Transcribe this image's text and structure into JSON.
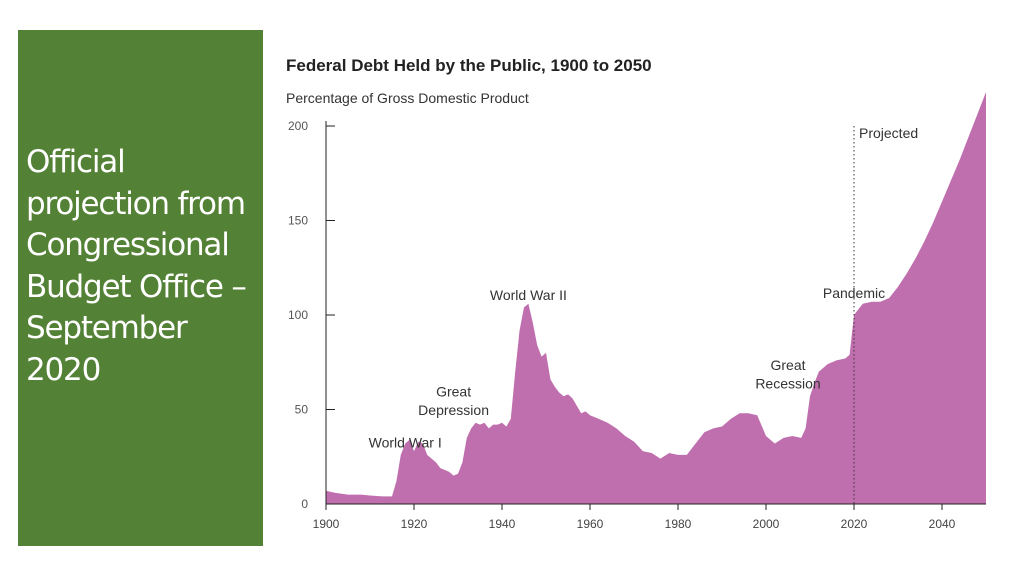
{
  "slide": {
    "side_title": "Official projection from Congressional Budget Office – September 2020",
    "panel_color": "#538135"
  },
  "chart_data": {
    "type": "area",
    "title": "Federal Debt Held by the Public, 1900 to 2050",
    "subtitle": "Percentage of Gross Domestic Product",
    "xlabel": "",
    "ylabel": "",
    "xlim": [
      1900,
      2050
    ],
    "ylim": [
      0,
      200
    ],
    "x_ticks": [
      "1900",
      "1920",
      "1940",
      "1960",
      "1980",
      "2000",
      "2020",
      "2040"
    ],
    "y_ticks": [
      "0",
      "50",
      "100",
      "150",
      "200"
    ],
    "grid": false,
    "fill_color": "#c06fae",
    "projection_start": 2020,
    "projection_label": "Projected",
    "annotations": [
      {
        "text": "World War I",
        "x": 1918,
        "y": 30
      },
      {
        "text": "Great",
        "x": 1929,
        "y": 57
      },
      {
        "text": "Depression",
        "x": 1929,
        "y": 47
      },
      {
        "text": "World War II",
        "x": 1946,
        "y": 108
      },
      {
        "text": "Great",
        "x": 2005,
        "y": 71
      },
      {
        "text": "Recession",
        "x": 2005,
        "y": 61
      },
      {
        "text": "Pandemic",
        "x": 2020,
        "y": 109
      }
    ],
    "x": [
      1900,
      1902,
      1905,
      1908,
      1910,
      1913,
      1915,
      1916,
      1917,
      1918,
      1919,
      1920,
      1921,
      1922,
      1923,
      1924,
      1925,
      1926,
      1927,
      1928,
      1929,
      1930,
      1931,
      1932,
      1933,
      1934,
      1935,
      1936,
      1937,
      1938,
      1939,
      1940,
      1941,
      1942,
      1943,
      1944,
      1945,
      1946,
      1947,
      1948,
      1949,
      1950,
      1951,
      1952,
      1953,
      1954,
      1955,
      1956,
      1957,
      1958,
      1959,
      1960,
      1962,
      1964,
      1966,
      1968,
      1970,
      1972,
      1974,
      1976,
      1978,
      1980,
      1982,
      1984,
      1986,
      1988,
      1990,
      1992,
      1994,
      1996,
      1998,
      2000,
      2002,
      2004,
      2006,
      2008,
      2009,
      2010,
      2011,
      2012,
      2014,
      2016,
      2018,
      2019,
      2020,
      2021,
      2022,
      2024,
      2026,
      2028,
      2030,
      2032,
      2034,
      2036,
      2038,
      2040,
      2042,
      2044,
      2046,
      2048,
      2050
    ],
    "values": [
      7,
      6,
      5,
      5,
      4.5,
      4,
      4,
      12,
      26,
      32,
      34,
      28,
      33,
      32,
      26,
      24,
      22,
      19,
      18,
      17,
      15,
      16,
      22,
      35,
      40,
      43,
      42,
      43,
      40,
      42,
      42,
      43,
      41,
      45,
      70,
      92,
      104,
      106,
      96,
      84,
      78,
      80,
      66,
      62,
      59,
      57,
      58,
      56,
      52,
      48,
      49,
      47,
      45,
      43,
      40,
      36,
      33,
      28,
      27,
      24,
      27,
      26,
      26,
      32,
      38,
      40,
      41,
      45,
      48,
      48,
      47,
      36,
      32,
      35,
      36,
      35,
      40,
      57,
      64,
      70,
      74,
      76,
      77,
      79,
      100,
      103,
      106,
      107,
      107,
      109,
      115,
      122,
      130,
      139,
      149,
      160,
      171,
      182,
      194,
      206,
      218
    ],
    "series": [
      {
        "name": "",
        "values": "see values"
      }
    ]
  }
}
